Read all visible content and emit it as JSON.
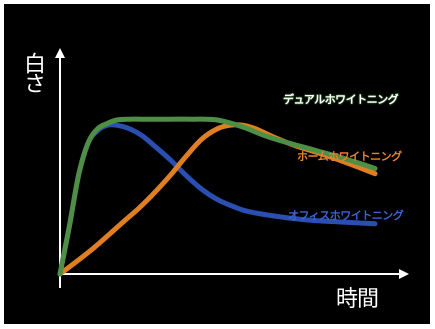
{
  "chart_data": {
    "type": "line",
    "ylabel": "白さ",
    "xlabel": "時間",
    "xlim": [
      0,
      100
    ],
    "ylim": [
      0,
      100
    ],
    "grid": false,
    "legend_position": "right, inline next to each curve",
    "series": [
      {
        "name": "デュアルホワイトニング",
        "color": "#4f8f45",
        "x": [
          0,
          3,
          6,
          9,
          12,
          15,
          18,
          22,
          26,
          30,
          35,
          42,
          50,
          58,
          65,
          72,
          80,
          88,
          95,
          100
        ],
        "y": [
          0,
          28,
          58,
          76,
          84,
          87,
          89,
          89.5,
          89.5,
          89.5,
          89.5,
          89.5,
          89,
          85,
          80,
          76,
          72,
          68,
          64,
          61
        ]
      },
      {
        "name": "ホーム ホワイトニング",
        "color": "#e07f22",
        "x": [
          0,
          10,
          20,
          25,
          30,
          35,
          40,
          45,
          50,
          54,
          58,
          62,
          68,
          75,
          82,
          90,
          100
        ],
        "y": [
          0,
          14,
          30,
          38,
          47,
          57,
          68,
          78,
          84,
          86,
          86,
          84,
          79,
          74,
          70,
          65,
          58
        ]
      },
      {
        "name": "オフィスホワイトニング",
        "color": "#2a4fb0",
        "x": [
          0,
          3,
          6,
          9,
          12,
          15,
          18,
          22,
          26,
          30,
          35,
          40,
          45,
          50,
          55,
          60,
          70,
          80,
          90,
          100
        ],
        "y": [
          0,
          28,
          58,
          76,
          83,
          86,
          86,
          84,
          80,
          74,
          66,
          57,
          49,
          43,
          39,
          36,
          33,
          31,
          30,
          29
        ]
      }
    ]
  },
  "legend": {
    "dual": "デュアルホワイトニング",
    "home": "ホームホワイトニング",
    "office": "オフィスホワイトニング"
  }
}
